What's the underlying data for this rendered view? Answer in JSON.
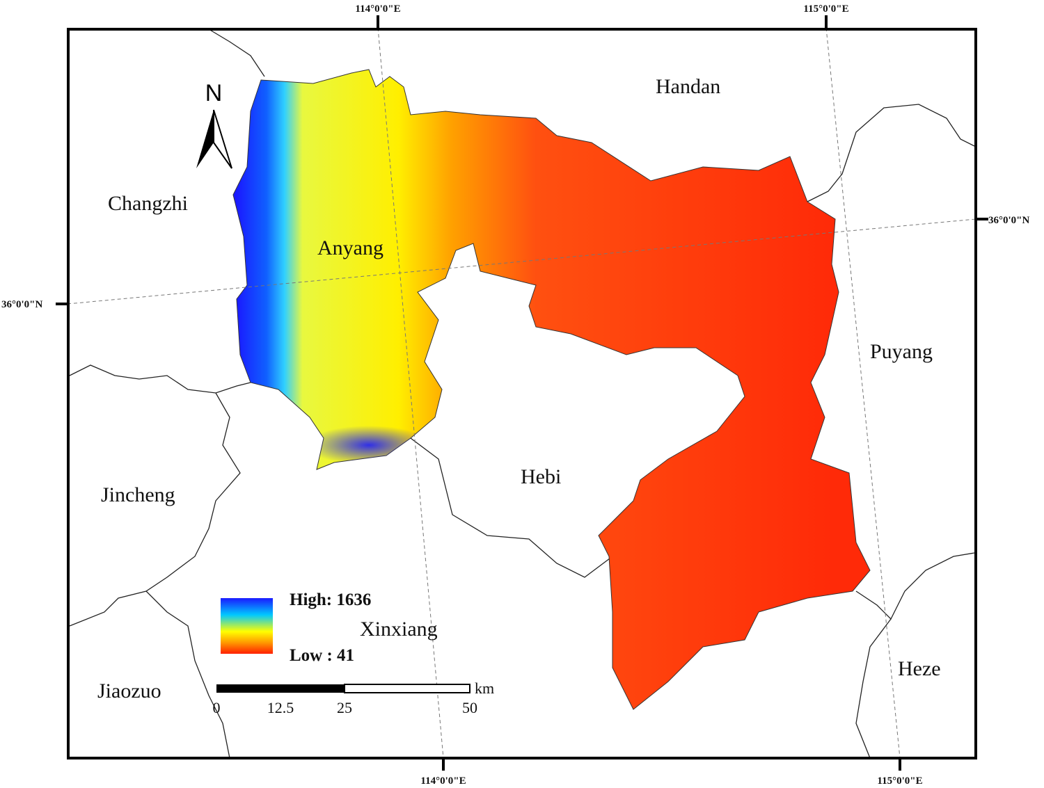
{
  "map": {
    "cities": {
      "handan": "Handan",
      "changzhi": "Changzhi",
      "anyang": "Anyang",
      "puyang": "Puyang",
      "hebi": "Hebi",
      "jincheng": "Jincheng",
      "xinxiang": "Xinxiang",
      "jiaozuo": "Jiaozuo",
      "heze": "Heze"
    },
    "graticule": {
      "lon_114": "114°0'0\"E",
      "lon_115": "115°0'0\"E",
      "lat_36": "36°0'0\"N"
    },
    "north_arrow": "N",
    "legend": {
      "high": "High: 1636",
      "low": "Low : 41",
      "colors": [
        "#1a1aff",
        "#00c8ff",
        "#ffff00",
        "#ff9900",
        "#ff2000"
      ]
    },
    "scale_bar": {
      "unit": "km",
      "ticks": [
        "0",
        "12.5",
        "25",
        "50"
      ]
    }
  }
}
